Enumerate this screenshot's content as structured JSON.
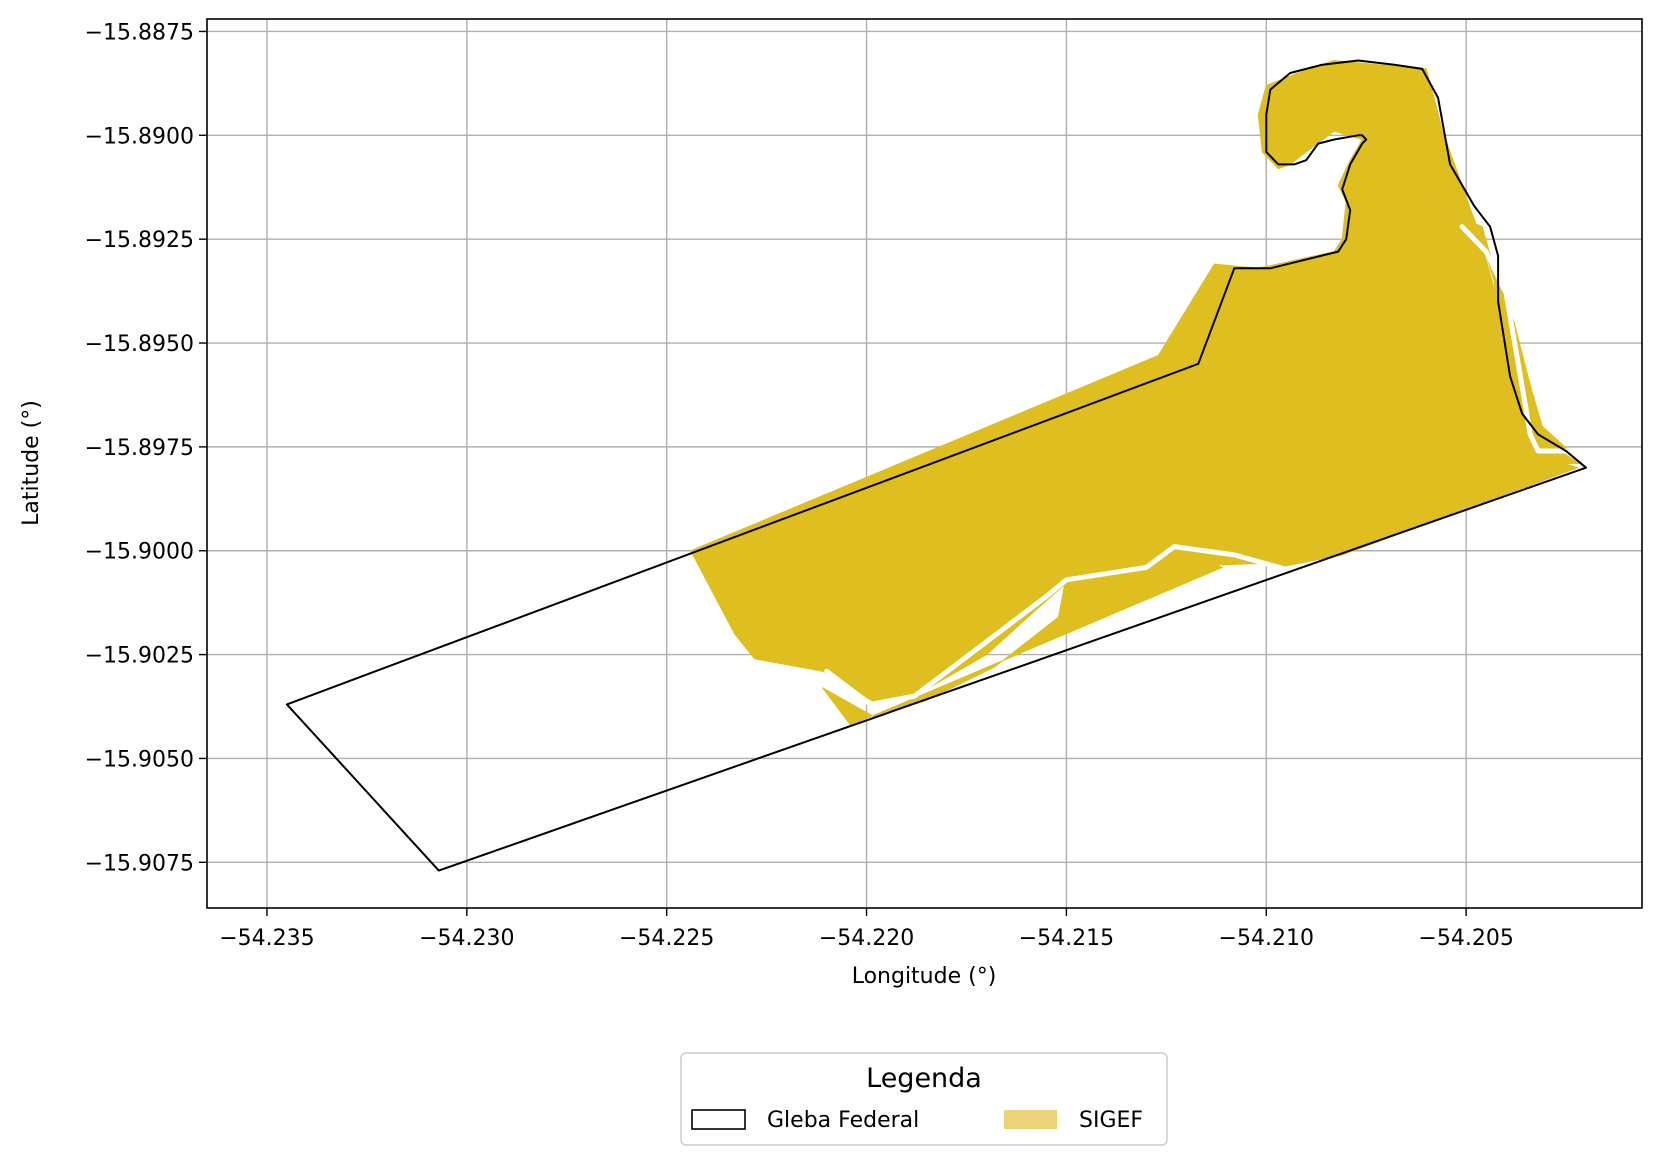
{
  "map": {
    "xlabel": "Longitude (°)",
    "ylabel": "Latitude (°)",
    "xlim": [
      -54.2365,
      -54.2006
    ],
    "ylim": [
      -15.9086,
      -15.8872
    ],
    "x_ticks": [
      -54.235,
      -54.23,
      -54.225,
      -54.22,
      -54.215,
      -54.21,
      -54.205
    ],
    "x_tick_labels": [
      "−54.235",
      "−54.230",
      "−54.225",
      "−54.220",
      "−54.215",
      "−54.210",
      "−54.205"
    ],
    "y_ticks": [
      -15.8875,
      -15.89,
      -15.8925,
      -15.895,
      -15.8975,
      -15.9,
      -15.9025,
      -15.905,
      -15.9075
    ],
    "y_tick_labels": [
      "−15.8875",
      "−15.8900",
      "−15.8925",
      "−15.8950",
      "−15.8975",
      "−15.9000",
      "−15.9025",
      "−15.9050",
      "−15.9075"
    ],
    "grid": true
  },
  "legend": {
    "title": "Legenda",
    "items": [
      {
        "label": "Gleba Federal",
        "style": "outline",
        "color": "#000000"
      },
      {
        "label": "SIGEF",
        "style": "fill",
        "color": "#e9d47a"
      }
    ]
  },
  "layers": {
    "sigef": {
      "name": "SIGEF",
      "fill": "#dfbe20",
      "parcels": [
        [
          [
            -54.2244,
            -15.9
          ],
          [
            -54.2127,
            -15.8953
          ],
          [
            -54.2113,
            -15.8931
          ],
          [
            -54.2102,
            -15.8932
          ],
          [
            -54.2083,
            -15.8928
          ],
          [
            -54.2081,
            -15.8925
          ],
          [
            -54.208,
            -15.8916
          ],
          [
            -54.2082,
            -15.8912
          ],
          [
            -54.2079,
            -15.8906
          ],
          [
            -54.2076,
            -15.8901
          ],
          [
            -54.2083,
            -15.8899
          ],
          [
            -54.209,
            -15.8904
          ],
          [
            -54.2094,
            -15.8907
          ],
          [
            -54.2097,
            -15.8908
          ],
          [
            -54.2101,
            -15.8904
          ],
          [
            -54.2102,
            -15.8895
          ],
          [
            -54.21,
            -15.8888
          ],
          [
            -54.2092,
            -15.8885
          ],
          [
            -54.2083,
            -15.8882
          ],
          [
            -54.2072,
            -15.8883
          ],
          [
            -54.206,
            -15.8884
          ],
          [
            -54.2058,
            -15.8891
          ],
          [
            -54.2053,
            -15.891
          ],
          [
            -54.2048,
            -15.892
          ],
          [
            -54.2042,
            -15.894
          ],
          [
            -54.2039,
            -15.8958
          ],
          [
            -54.2036,
            -15.8972
          ],
          [
            -54.2032,
            -15.8977
          ],
          [
            -54.2022,
            -15.898
          ],
          [
            -54.2081,
            -15.9001
          ],
          [
            -54.2097,
            -15.9004
          ],
          [
            -54.21,
            -15.9003
          ],
          [
            -54.213,
            -15.9004
          ],
          [
            -54.2149,
            -15.9007
          ],
          [
            -54.2155,
            -15.9012
          ],
          [
            -54.217,
            -15.9025
          ],
          [
            -54.2188,
            -15.9035
          ],
          [
            -54.2197,
            -15.9037
          ],
          [
            -54.2211,
            -15.9029
          ],
          [
            -54.2228,
            -15.9026
          ],
          [
            -54.2233,
            -15.902
          ]
        ],
        [
          [
            -54.2111,
            -15.9004
          ],
          [
            -54.2123,
            -15.8999
          ],
          [
            -54.215,
            -15.9006
          ],
          [
            -54.2152,
            -15.9016
          ],
          [
            -54.2168,
            -15.9028
          ],
          [
            -54.2185,
            -15.9036
          ],
          [
            -54.2198,
            -15.904
          ],
          [
            -54.2211,
            -15.9033
          ],
          [
            -54.2204,
            -15.9042
          ]
        ],
        [
          [
            -54.206,
            -15.8885
          ],
          [
            -54.2063,
            -15.889
          ],
          [
            -54.2067,
            -15.8903
          ],
          [
            -54.2062,
            -15.8911
          ],
          [
            -54.2055,
            -15.8918
          ],
          [
            -54.2046,
            -15.8922
          ],
          [
            -54.2043,
            -15.8932
          ],
          [
            -54.2038,
            -15.8945
          ],
          [
            -54.2034,
            -15.896
          ],
          [
            -54.2031,
            -15.897
          ],
          [
            -54.2023,
            -15.8977
          ],
          [
            -54.2021,
            -15.8979
          ],
          [
            -54.2034,
            -15.8979
          ],
          [
            -54.2036,
            -15.8976
          ],
          [
            -54.204,
            -15.8957
          ],
          [
            -54.2043,
            -15.8935
          ],
          [
            -54.2047,
            -15.8923
          ],
          [
            -54.2051,
            -15.8912
          ],
          [
            -54.2057,
            -15.8896
          ]
        ]
      ]
    },
    "gleba": {
      "name": "Gleba Federal",
      "stroke": "#000000",
      "polygon": [
        [
          -54.2345,
          -15.9037
        ],
        [
          -54.2117,
          -15.8955
        ],
        [
          -54.2108,
          -15.8932
        ],
        [
          -54.2099,
          -15.8932
        ],
        [
          -54.2082,
          -15.8928
        ],
        [
          -54.208,
          -15.8925
        ],
        [
          -54.2079,
          -15.8918
        ],
        [
          -54.2081,
          -15.8913
        ],
        [
          -54.2079,
          -15.8907
        ],
        [
          -54.2076,
          -15.8902
        ],
        [
          -54.2075,
          -15.8901
        ],
        [
          -54.2076,
          -15.89
        ],
        [
          -54.2077,
          -15.89
        ],
        [
          -54.2083,
          -15.8901
        ],
        [
          -54.2087,
          -15.8902
        ],
        [
          -54.209,
          -15.8906
        ],
        [
          -54.2093,
          -15.8907
        ],
        [
          -54.2097,
          -15.8907
        ],
        [
          -54.21,
          -15.8904
        ],
        [
          -54.21,
          -15.8895
        ],
        [
          -54.2099,
          -15.8889
        ],
        [
          -54.2094,
          -15.8885
        ],
        [
          -54.2086,
          -15.8883
        ],
        [
          -54.2077,
          -15.8882
        ],
        [
          -54.2068,
          -15.8883
        ],
        [
          -54.2061,
          -15.8884
        ],
        [
          -54.2057,
          -15.8891
        ],
        [
          -54.2054,
          -15.8907
        ],
        [
          -54.2048,
          -15.8917
        ],
        [
          -54.2044,
          -15.8922
        ],
        [
          -54.2042,
          -15.8929
        ],
        [
          -54.2042,
          -15.894
        ],
        [
          -54.2039,
          -15.8958
        ],
        [
          -54.2036,
          -15.8967
        ],
        [
          -54.2032,
          -15.8972
        ],
        [
          -54.2025,
          -15.8976
        ],
        [
          -54.202,
          -15.898
        ],
        [
          -54.2307,
          -15.9077
        ]
      ]
    },
    "roads": {
      "color": "#ffffff",
      "lines": [
        [
          [
            -54.221,
            -15.9029
          ],
          [
            -54.2199,
            -15.9037
          ],
          [
            -54.2188,
            -15.9035
          ],
          [
            -54.2166,
            -15.9019
          ],
          [
            -54.2155,
            -15.9011
          ],
          [
            -54.215,
            -15.9007
          ],
          [
            -54.213,
            -15.9004
          ],
          [
            -54.2123,
            -15.8999
          ],
          [
            -54.2108,
            -15.9001
          ],
          [
            -54.2093,
            -15.9005
          ]
        ],
        [
          [
            -54.2051,
            -15.8922
          ],
          [
            -54.2045,
            -15.8928
          ],
          [
            -54.204,
            -15.8938
          ],
          [
            -54.2035,
            -15.8966
          ],
          [
            -54.2034,
            -15.8972
          ],
          [
            -54.2032,
            -15.8976
          ],
          [
            -54.2025,
            -15.8976
          ],
          [
            -54.2022,
            -15.8978
          ]
        ]
      ]
    }
  }
}
